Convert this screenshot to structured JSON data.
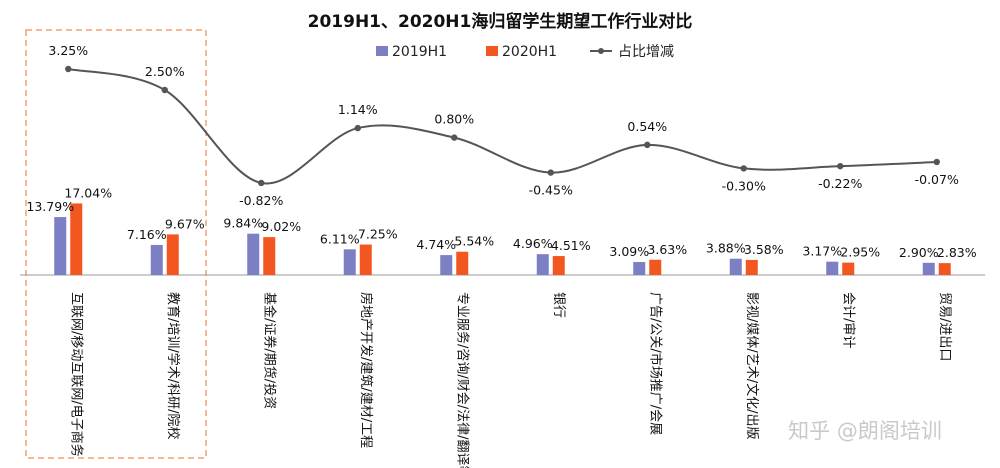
{
  "chart_data": {
    "type": "bar",
    "title": "2019H1、2020H1海归留学生期望工作行业对比",
    "categories": [
      "互联网/移动互联网/电子商务",
      "教育/培训/学术/科研/院校",
      "基金/证券/期货/投资",
      "房地产开发/建筑/建材/工程",
      "专业服务/咨询/财会/法律/翻译等",
      "银行",
      "广告/公关/市场推广/会展",
      "影视/媒体/艺术/文化/出版",
      "会计/审计",
      "贸易/进出口"
    ],
    "series": [
      {
        "name": "2019H1",
        "color": "#7b7fc4",
        "values": [
          13.79,
          7.16,
          9.84,
          6.11,
          4.74,
          4.96,
          3.09,
          3.88,
          3.17,
          2.9
        ],
        "labels": [
          "13.79%",
          "7.16%",
          "9.84%",
          "6.11%",
          "4.74%",
          "4.96%",
          "3.09%",
          "3.88%",
          "3.17%",
          "2.90%"
        ]
      },
      {
        "name": "2020H1",
        "color": "#f2571f",
        "values": [
          17.04,
          9.67,
          9.02,
          7.25,
          5.54,
          4.51,
          3.63,
          3.58,
          2.95,
          2.83
        ],
        "labels": [
          "17.04%",
          "9.67%",
          "9.02%",
          "7.25%",
          "5.54%",
          "4.51%",
          "3.63%",
          "3.58%",
          "2.95%",
          "2.83%"
        ]
      },
      {
        "name": "占比增减",
        "type": "line",
        "color": "#555555",
        "values": [
          3.25,
          2.5,
          -0.82,
          1.14,
          0.8,
          -0.45,
          0.54,
          -0.3,
          -0.22,
          -0.07
        ],
        "labels": [
          "3.25%",
          "2.50%",
          "-0.82%",
          "1.14%",
          "0.80%",
          "-0.45%",
          "0.54%",
          "-0.30%",
          "-0.22%",
          "-0.07%"
        ]
      }
    ],
    "legend_position": "top",
    "highlight": {
      "categories": [
        "互联网/移动互联网/电子商务",
        "教育/培训/学术/科研/院校"
      ],
      "style": "dashed",
      "color": "#f0a070"
    },
    "grid": false
  },
  "watermark": "知乎 @朗阁培训"
}
